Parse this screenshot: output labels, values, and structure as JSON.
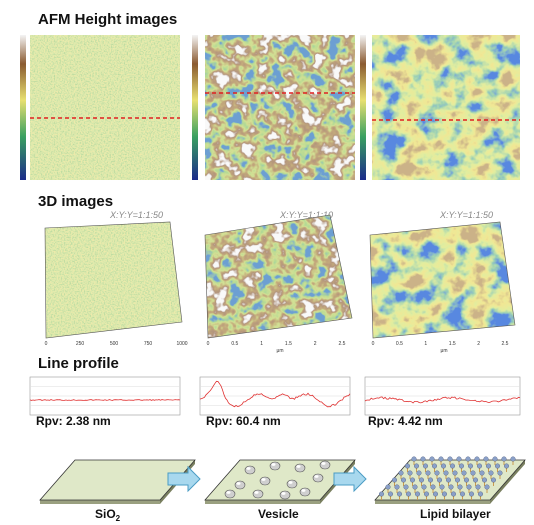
{
  "figure": {
    "sections": {
      "afm": {
        "title": "AFM Height images"
      },
      "three_d": {
        "title": "3D images",
        "ratios": [
          "X:Y:Y=1:1:50",
          "X:Y:Y=1:1:10",
          "X:Y:Y=1:1:50"
        ],
        "ticks": {
          "nm": [
            "0",
            "250",
            "500",
            "750",
            "1000"
          ],
          "um": [
            "0",
            "0.5",
            "1",
            "1.5",
            "2",
            "2.5"
          ],
          "unit": "μm"
        }
      },
      "line_profile": {
        "title": "Line profile",
        "rpv": [
          "Rpv: 2.38 nm",
          "Rpv: 60.4 nm",
          "Rpv: 4.42 nm"
        ]
      }
    },
    "schematic": {
      "steps": [
        {
          "label": "SiO",
          "sub": "2"
        },
        {
          "label": "Vesicle"
        },
        {
          "label": "Lipid bilayer"
        }
      ]
    }
  }
}
